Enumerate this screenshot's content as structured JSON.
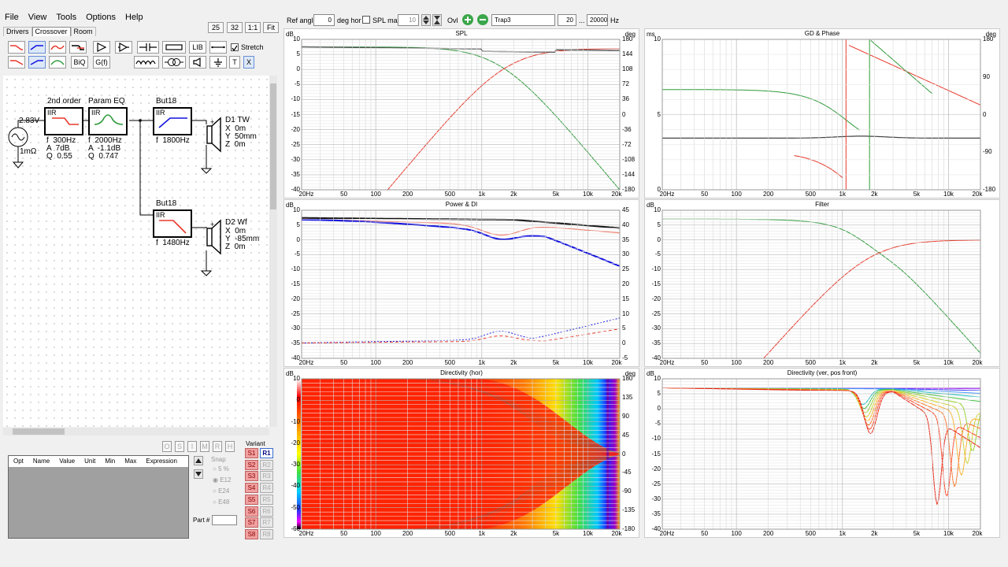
{
  "menu": [
    "File",
    "View",
    "Tools",
    "Options",
    "Help"
  ],
  "tabs": [
    "Drivers",
    "Crossover",
    "Room"
  ],
  "zoom_buttons": [
    "25",
    "32",
    "1:1",
    "Fit"
  ],
  "toolbar": {
    "biq": "BiQ",
    "gf": "G(f)",
    "lib": "LIB",
    "stretch": "Stretch",
    "t": "T",
    "x": "X"
  },
  "topbar": {
    "ref_angle_label": "Ref angle",
    "ref_angle": "0",
    "deg_hor": "deg hor",
    "spl_max": "SPL max",
    "spl_max_val": "10",
    "ovl": "Ovl",
    "trace_name": "Trap3",
    "f_min": "20",
    "sep": "...",
    "f_max": "20000",
    "hz": "Hz"
  },
  "schematic": {
    "source": {
      "voltage": "2.83V",
      "impedance": "1mΩ"
    },
    "blocks": [
      {
        "title": "2nd order",
        "type": "IIR",
        "params": "f  300Hz\nA  7dB\nQ  0.55"
      },
      {
        "title": "Param EQ",
        "type": "IIR",
        "params": "f  2000Hz\nA  -1.1dB\nQ  0.747"
      },
      {
        "title": "But18",
        "type": "IIR",
        "params": "f  1800Hz"
      },
      {
        "title": "But18",
        "type": "IIR",
        "params": "f  1480Hz"
      }
    ],
    "drivers": [
      {
        "name": "D1 TW",
        "pos": "X  0m\nY  50mm\nZ  0m"
      },
      {
        "name": "D2 Wf",
        "pos": "X  0m\nY  -85mm\nZ  0m"
      }
    ]
  },
  "opt_buttons": [
    "O",
    "S",
    "I",
    "M",
    "R",
    "H"
  ],
  "opt_headers": [
    "Opt",
    "Name",
    "Value",
    "Unit",
    "Min",
    "Max",
    "Expression"
  ],
  "snap": {
    "label": "Snap",
    "options": [
      "5 %",
      "E12",
      "E24",
      "E48"
    ]
  },
  "part_label": "Part #",
  "variant": {
    "label": "Variant",
    "s": [
      "S1",
      "S2",
      "S3",
      "S4",
      "S5",
      "S6",
      "S7",
      "S8"
    ],
    "r": [
      "R1",
      "R2",
      "R3",
      "R4",
      "R5",
      "R6",
      "R7",
      "R8"
    ]
  },
  "xticks": [
    "20Hz",
    "50",
    "100",
    "200",
    "500",
    "1k",
    "2k",
    "5k",
    "10k",
    "20k"
  ],
  "panels": {
    "spl": {
      "title": "SPL",
      "yunit": "dB",
      "runit": "deg",
      "y": [
        "10",
        "5",
        "0",
        "-5",
        "-10",
        "-15",
        "-20",
        "-25",
        "-30",
        "-35",
        "-40"
      ],
      "r": [
        "180",
        "144",
        "108",
        "72",
        "36",
        "0",
        "-36",
        "-72",
        "-108",
        "-144",
        "-180"
      ]
    },
    "gd": {
      "title": "GD & Phase",
      "yunit": "ms",
      "runit": "deg",
      "y": [
        "10",
        "5",
        "0"
      ],
      "r": [
        "180",
        "90",
        "0",
        "-90",
        "-180"
      ]
    },
    "power": {
      "title": "Power & DI",
      "yunit": "dB",
      "runit": "",
      "y": [
        "10",
        "5",
        "0",
        "-5",
        "-10",
        "-15",
        "-20",
        "-25",
        "-30",
        "-35",
        "-40"
      ],
      "r": [
        "45",
        "40",
        "35",
        "30",
        "25",
        "20",
        "15",
        "10",
        "5",
        "0",
        "-5"
      ]
    },
    "filter": {
      "title": "Filter",
      "yunit": "dB",
      "y": [
        "10",
        "5",
        "0",
        "-5",
        "-10",
        "-15",
        "-20",
        "-25",
        "-30",
        "-35",
        "-40"
      ]
    },
    "dirh": {
      "title": "Directivity (hor)",
      "yunit": "dB",
      "runit": "deg",
      "y": [
        "10",
        "0",
        "-10",
        "-20",
        "-30",
        "-40",
        "-50",
        "-60"
      ],
      "r": [
        "180",
        "135",
        "90",
        "45",
        "0",
        "-45",
        "-90",
        "-135",
        "-180"
      ]
    },
    "dirv": {
      "title": "Directivity (ver, pos front)",
      "yunit": "dB",
      "y": [
        "10",
        "5",
        "0",
        "-5",
        "-10",
        "-15",
        "-20",
        "-25",
        "-30",
        "-35",
        "-40"
      ]
    }
  },
  "colors": {
    "red": "#e8382a",
    "green": "#2e9a3a",
    "blue": "#1010e0",
    "black": "#111111"
  }
}
